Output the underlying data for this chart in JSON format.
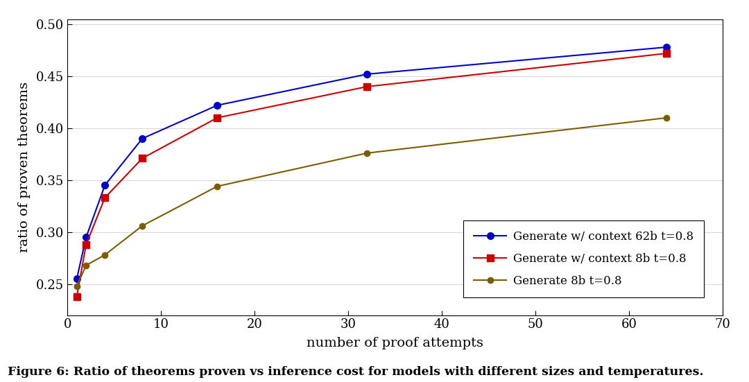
{
  "series": [
    {
      "label": "Generate w/ context 62b t=0.8",
      "color": "#0000cc",
      "marker": "o",
      "markersize": 7,
      "linewidth": 1.5,
      "x": [
        1,
        2,
        4,
        8,
        16,
        32,
        64
      ],
      "y": [
        0.255,
        0.295,
        0.345,
        0.39,
        0.422,
        0.452,
        0.478
      ]
    },
    {
      "label": "Generate w/ context 8b t=0.8",
      "color": "#cc0000",
      "marker": "s",
      "markersize": 7,
      "linewidth": 1.5,
      "x": [
        1,
        2,
        4,
        8,
        16,
        32,
        64
      ],
      "y": [
        0.238,
        0.288,
        0.333,
        0.371,
        0.41,
        0.44,
        0.472
      ]
    },
    {
      "label": "Generate 8b t=0.8",
      "color": "#7B5C00",
      "marker": "o",
      "markersize": 6,
      "linewidth": 1.5,
      "x": [
        1,
        2,
        4,
        8,
        16,
        32,
        64
      ],
      "y": [
        0.248,
        0.268,
        0.278,
        0.306,
        0.344,
        0.376,
        0.41
      ]
    }
  ],
  "xlabel": "number of proof attempts",
  "ylabel": "ratio of proven theorems",
  "xlim": [
    0.7,
    90
  ],
  "ylim": [
    0.22,
    0.505
  ],
  "yticks": [
    0.25,
    0.3,
    0.35,
    0.4,
    0.45,
    0.5
  ],
  "xtick_vals": [
    1,
    10,
    20,
    30,
    40,
    50,
    60,
    70
  ],
  "xtick_labels": [
    "",
    "10",
    "20",
    "30",
    "40",
    "50",
    "60",
    "70"
  ],
  "figure_caption": "Figure 6: Ratio of theorems proven vs inference cost for models with different sizes and temperatures.",
  "bg_color": "#ffffff",
  "grid_color": "#d0d0d0",
  "font_family": "DejaVu Serif"
}
